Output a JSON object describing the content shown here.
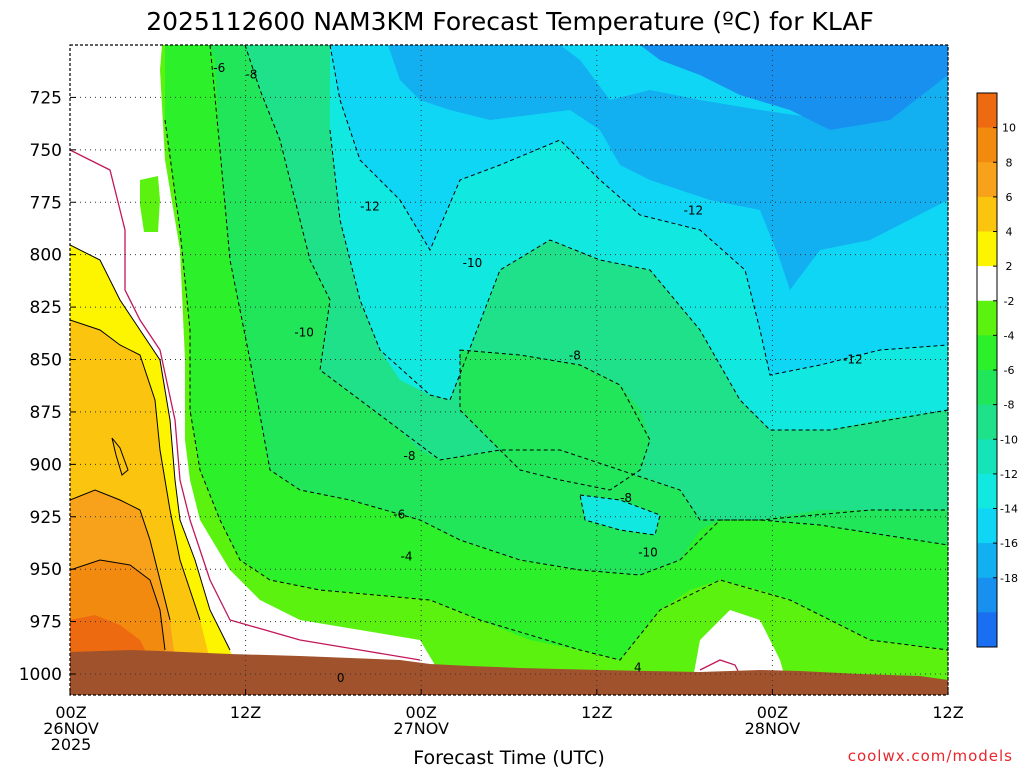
{
  "chart_data": {
    "type": "contour",
    "title": "2025112600 NAM3KM Forecast Temperature (ºC) for KLAF",
    "xlabel": "Forecast Time (UTC)",
    "ylabel": "",
    "y_axis": "pressure (hPa), inverted",
    "y_ticks": [
      725,
      750,
      775,
      800,
      825,
      850,
      875,
      900,
      925,
      950,
      975,
      1000
    ],
    "x_ticks": [
      {
        "hour": 0,
        "line1": "00Z",
        "line2": "26NOV",
        "line3": "2025"
      },
      {
        "hour": 12,
        "line1": "12Z",
        "line2": "",
        "line3": ""
      },
      {
        "hour": 24,
        "line1": "00Z",
        "line2": "27NOV",
        "line3": ""
      },
      {
        "hour": 36,
        "line1": "12Z",
        "line2": "",
        "line3": ""
      },
      {
        "hour": 48,
        "line1": "00Z",
        "line2": "28NOV",
        "line3": ""
      },
      {
        "hour": 60,
        "line1": "12Z",
        "line2": "",
        "line3": ""
      }
    ],
    "xlim": [
      0,
      60
    ],
    "ylim": [
      700,
      1010
    ],
    "grid": true,
    "colorbar": {
      "levels": [
        10,
        8,
        6,
        4,
        2,
        -2,
        -4,
        -6,
        -8,
        -10,
        -12,
        -14,
        -16,
        -18
      ],
      "colors": [
        "#ee6a10",
        "#f28a10",
        "#f7a21a",
        "#fbc40f",
        "#fdf400",
        "#ffffff",
        "#5cf210",
        "#2bf02a",
        "#21e65a",
        "#1fe18a",
        "#14e4b8",
        "#11e8e0",
        "#0fd6f4",
        "#12b0f0",
        "#1890f0",
        "#1a6ef0"
      ]
    },
    "contour_labels": [
      {
        "text": "-6",
        "hour": 10.2,
        "p": 711
      },
      {
        "text": "-8",
        "hour": 12.4,
        "p": 714
      },
      {
        "text": "-12",
        "hour": 20.5,
        "p": 777
      },
      {
        "text": "-12",
        "hour": 42.6,
        "p": 779
      },
      {
        "text": "-10",
        "hour": 27.5,
        "p": 804
      },
      {
        "text": "-10",
        "hour": 16.0,
        "p": 837
      },
      {
        "text": "-8",
        "hour": 34.5,
        "p": 848
      },
      {
        "text": "-12",
        "hour": 53.5,
        "p": 850
      },
      {
        "text": "-8",
        "hour": 23.2,
        "p": 896
      },
      {
        "text": "-8",
        "hour": 38.0,
        "p": 916
      },
      {
        "text": "-6",
        "hour": 22.5,
        "p": 924
      },
      {
        "text": "-10",
        "hour": 39.5,
        "p": 942
      },
      {
        "text": "-4",
        "hour": 23.0,
        "p": 944
      },
      {
        "text": "0",
        "hour": 18.5,
        "p": 1002
      },
      {
        "text": "4",
        "hour": 38.8,
        "p": 997
      }
    ]
  },
  "credit": "coolwx.com/models"
}
